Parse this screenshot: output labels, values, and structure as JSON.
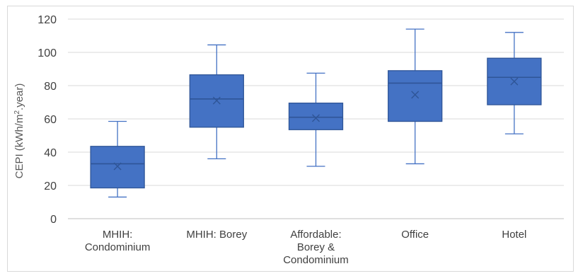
{
  "chart_data": {
    "type": "box",
    "ylabel_parts": {
      "pre": "CEPI (kWh/m",
      "sup": "2",
      "post": ".year)"
    },
    "ylim": [
      0,
      120
    ],
    "yticks": [
      0,
      20,
      40,
      60,
      80,
      100,
      120
    ],
    "grid": true,
    "color": "#4472C4",
    "edge_color": "#2F5597",
    "categories": [
      [
        "MHIH:",
        "Condominium"
      ],
      [
        "MHIH: Borey"
      ],
      [
        "Affordable:",
        "Borey &",
        "Condominium"
      ],
      [
        "Office"
      ],
      [
        "Hotel"
      ]
    ],
    "boxes": [
      {
        "min": 13,
        "q1": 18.5,
        "median": 33,
        "q3": 43.5,
        "max": 58.5,
        "mean": 31.5
      },
      {
        "min": 36,
        "q1": 55,
        "median": 72,
        "q3": 86.5,
        "max": 104.5,
        "mean": 71
      },
      {
        "min": 31.5,
        "q1": 53.5,
        "median": 61,
        "q3": 69.5,
        "max": 87.5,
        "mean": 60.5
      },
      {
        "min": 33,
        "q1": 58.5,
        "median": 81.5,
        "q3": 89,
        "max": 114,
        "mean": 74.5
      },
      {
        "min": 51,
        "q1": 68.5,
        "median": 85,
        "q3": 96.5,
        "max": 112,
        "mean": 82.5
      }
    ]
  }
}
